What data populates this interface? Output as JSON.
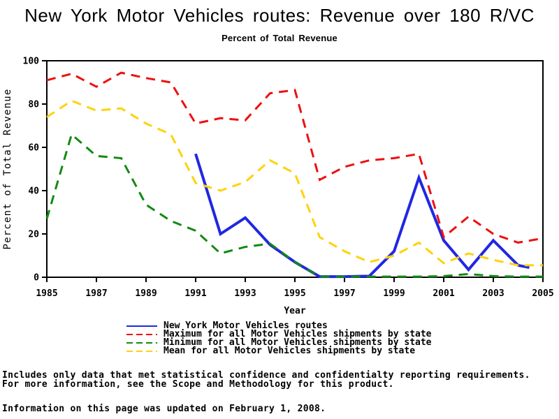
{
  "page": {
    "title": "New York Motor Vehicles routes: Revenue over 180 R/VC",
    "subtitle": "Percent of Total Revenue",
    "footnote_line1": "Includes only data that met statistical confidence and confidentialty reporting requirements.",
    "footnote_line2": "For more information, see the Scope and Methodology for this product.",
    "updated_line": "Information on this page was updated on February 1, 2008."
  },
  "chart_data": {
    "type": "line",
    "title": "New York Motor Vehicles routes: Revenue over 180 R/VC",
    "subtitle": "Percent of Total Revenue",
    "xlabel": "Year",
    "ylabel": "Percent of Total Revenue",
    "xlim": [
      1985,
      2005
    ],
    "ylim": [
      0,
      100
    ],
    "x_ticks": [
      1985,
      1987,
      1989,
      1991,
      1993,
      1995,
      1997,
      1999,
      2001,
      2003,
      2005
    ],
    "y_ticks": [
      0,
      20,
      40,
      60,
      80,
      100
    ],
    "grid": false,
    "legend_position": "bottom",
    "frame": true,
    "axis_color": "#000000",
    "series": [
      {
        "name": "New York Motor Vehicles routes",
        "color": "#2127e2",
        "style": "solid",
        "width": 4,
        "x": [
          1991,
          1992,
          1993,
          1994,
          1995,
          1996,
          1997,
          1998,
          1999,
          2000,
          2001,
          2002,
          2003,
          2004,
          2004.45
        ],
        "values": [
          57,
          20,
          27.5,
          15,
          7,
          0.3,
          0.3,
          0.5,
          12,
          46,
          17,
          3.5,
          17,
          5.5,
          4.5
        ]
      },
      {
        "name": "Maximum for all Motor Vehicles shipments by state",
        "color": "#ee1010",
        "style": "dashed",
        "width": 3,
        "x": [
          1985,
          1986,
          1987,
          1988,
          1989,
          1990,
          1991,
          1992,
          1993,
          1994,
          1995,
          1996,
          1997,
          1998,
          1999,
          2000,
          2001,
          2002,
          2003,
          2004,
          2005
        ],
        "values": [
          91,
          94,
          88,
          94.5,
          92,
          90,
          71,
          73.5,
          72.5,
          85,
          86.5,
          45,
          51,
          54,
          55,
          57,
          18.5,
          28,
          20,
          16,
          18
        ]
      },
      {
        "name": "Minimum for all Motor Vehicles shipments by state",
        "color": "#128a12",
        "style": "dashed",
        "width": 3,
        "x": [
          1985,
          1986,
          1987,
          1988,
          1989,
          1990,
          1991,
          1992,
          1993,
          1994,
          1995,
          1996,
          1997,
          1998,
          1999,
          2000,
          2001,
          2002,
          2003,
          2004,
          2005
        ],
        "values": [
          27,
          66,
          56,
          55,
          33.5,
          26,
          21.5,
          11,
          14,
          15.5,
          7,
          0.3,
          0.3,
          0.3,
          0.3,
          0.3,
          0.5,
          1.5,
          0.5,
          0.3,
          0.3
        ]
      },
      {
        "name": "Mean for all Motor Vehicles shipments by state",
        "color": "#ffd20a",
        "style": "dashed",
        "width": 3,
        "x": [
          1985,
          1986,
          1987,
          1988,
          1989,
          1990,
          1991,
          1992,
          1993,
          1994,
          1995,
          1996,
          1997,
          1998,
          1999,
          2000,
          2001,
          2002,
          2003,
          2004,
          2005
        ],
        "values": [
          74,
          81.5,
          77,
          78,
          71,
          66,
          43.5,
          40,
          44,
          54,
          48,
          18.5,
          12,
          7,
          10,
          16,
          6.5,
          11,
          8,
          5.5,
          5.5
        ]
      }
    ]
  }
}
